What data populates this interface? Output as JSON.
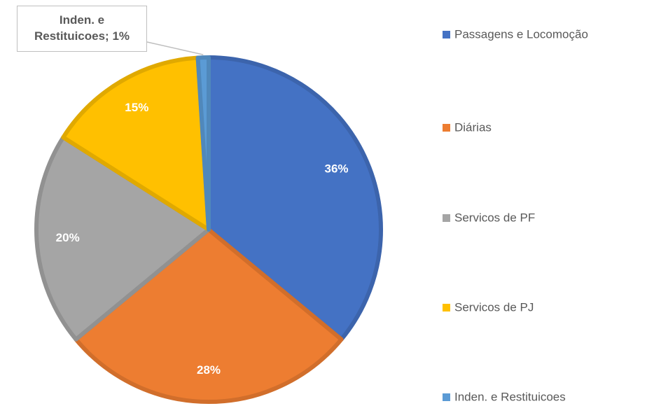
{
  "chart_data": {
    "type": "pie",
    "categories": [
      "Passagens e Locomoção",
      "Diárias",
      "Servicos de PF",
      "Servicos de PJ",
      "Inden. e Restituicoes"
    ],
    "values": [
      36,
      28,
      20,
      15,
      1
    ],
    "value_labels": [
      "36%",
      "28%",
      "20%",
      "15%",
      "Inden. e Restituicoes; 1%"
    ],
    "colors": [
      "#4472c4",
      "#ed7d31",
      "#a5a5a5",
      "#ffc000",
      "#5b9bd5"
    ],
    "legend": "right"
  }
}
